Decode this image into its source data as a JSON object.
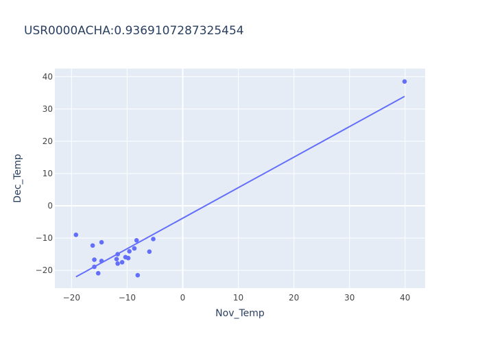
{
  "chart_data": {
    "type": "scatter",
    "title": "USR0000ACHA:0.9369107287325454",
    "xlabel": "Nov_Temp",
    "ylabel": "Dec_Temp",
    "xlim": [
      -23,
      43.6
    ],
    "ylim": [
      -25.5,
      42.5
    ],
    "x_ticks": [
      -20,
      -10,
      0,
      10,
      20,
      30,
      40
    ],
    "y_ticks": [
      -20,
      -10,
      0,
      10,
      20,
      30,
      40
    ],
    "grid": true,
    "series": [
      {
        "type": "scatter",
        "x": [
          -19.2,
          -16.2,
          -15.9,
          -15.9,
          -15.2,
          -14.6,
          -14.6,
          -11.9,
          -11.7,
          -11.7,
          -10.9,
          -10.3,
          -9.8,
          -9.6,
          -8.7,
          -8.3,
          -8.1,
          -6.0,
          -5.3,
          39.9
        ],
        "y": [
          -9.0,
          -12.3,
          -16.7,
          -18.9,
          -20.9,
          -17.1,
          -11.3,
          -16.5,
          -15.0,
          -17.9,
          -17.5,
          -15.9,
          -16.2,
          -14.1,
          -13.2,
          -10.7,
          -21.5,
          -14.2,
          -10.3,
          38.5
        ]
      },
      {
        "type": "line",
        "x": [
          -19.2,
          39.9
        ],
        "y": [
          -22.0,
          33.9
        ]
      }
    ],
    "colors": {
      "marker": "#636efa",
      "line": "#636efa",
      "plot_bg": "#e5ecf6",
      "grid": "#ffffff",
      "text": "#2a3f5f",
      "tick_text": "#444444"
    }
  }
}
